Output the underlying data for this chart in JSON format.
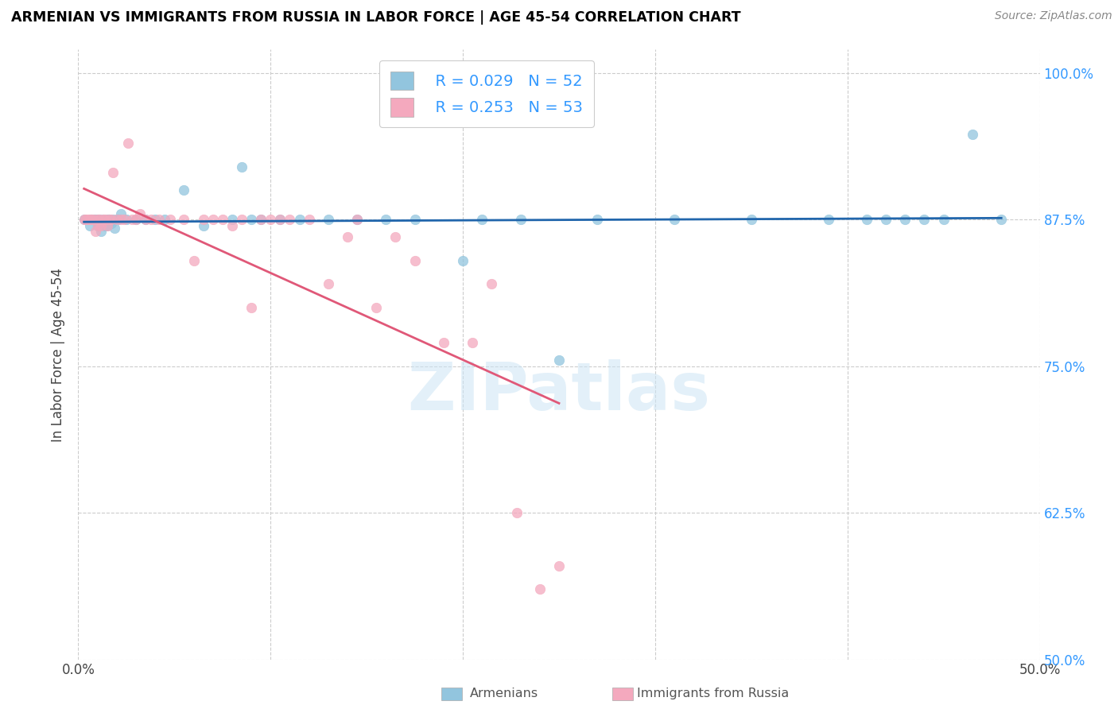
{
  "title": "ARMENIAN VS IMMIGRANTS FROM RUSSIA IN LABOR FORCE | AGE 45-54 CORRELATION CHART",
  "source": "Source: ZipAtlas.com",
  "ylabel": "In Labor Force | Age 45-54",
  "xlim": [
    0.0,
    0.5
  ],
  "ylim": [
    0.5,
    1.02
  ],
  "xtick_pos": [
    0.0,
    0.1,
    0.2,
    0.3,
    0.4,
    0.5
  ],
  "xtick_labels": [
    "0.0%",
    "",
    "",
    "",
    "",
    "50.0%"
  ],
  "yticks": [
    0.5,
    0.625,
    0.75,
    0.875,
    1.0
  ],
  "ytick_labels": [
    "50.0%",
    "62.5%",
    "75.0%",
    "87.5%",
    "100.0%"
  ],
  "blue_color": "#92c5de",
  "pink_color": "#f4a9be",
  "trend_blue": "#2166ac",
  "trend_pink": "#e05878",
  "watermark": "ZIPatlas",
  "legend_R_blue": "R = 0.029",
  "legend_N_blue": "N = 52",
  "legend_R_pink": "R = 0.253",
  "legend_N_pink": "N = 53",
  "legend_label_blue": "Armenians",
  "legend_label_pink": "Immigrants from Russia",
  "blue_x": [
    0.003,
    0.006,
    0.007,
    0.008,
    0.009,
    0.01,
    0.01,
    0.011,
    0.012,
    0.013,
    0.014,
    0.015,
    0.015,
    0.016,
    0.017,
    0.018,
    0.019,
    0.02,
    0.021,
    0.022,
    0.025,
    0.03,
    0.035,
    0.04,
    0.045,
    0.055,
    0.065,
    0.08,
    0.085,
    0.09,
    0.095,
    0.105,
    0.115,
    0.13,
    0.145,
    0.16,
    0.175,
    0.2,
    0.21,
    0.23,
    0.25,
    0.27,
    0.31,
    0.35,
    0.39,
    0.41,
    0.42,
    0.43,
    0.44,
    0.45,
    0.465,
    0.48
  ],
  "blue_y": [
    0.875,
    0.87,
    0.875,
    0.875,
    0.875,
    0.875,
    0.87,
    0.875,
    0.865,
    0.875,
    0.87,
    0.875,
    0.87,
    0.875,
    0.872,
    0.875,
    0.868,
    0.875,
    0.875,
    0.88,
    0.875,
    0.875,
    0.875,
    0.875,
    0.875,
    0.9,
    0.87,
    0.875,
    0.92,
    0.875,
    0.875,
    0.875,
    0.875,
    0.875,
    0.875,
    0.875,
    0.875,
    0.84,
    0.875,
    0.875,
    0.755,
    0.875,
    0.875,
    0.875,
    0.875,
    0.875,
    0.875,
    0.875,
    0.875,
    0.875,
    0.948,
    0.875
  ],
  "pink_x": [
    0.003,
    0.004,
    0.005,
    0.006,
    0.007,
    0.008,
    0.009,
    0.01,
    0.01,
    0.011,
    0.012,
    0.013,
    0.014,
    0.015,
    0.016,
    0.017,
    0.018,
    0.02,
    0.022,
    0.024,
    0.026,
    0.028,
    0.03,
    0.032,
    0.035,
    0.038,
    0.042,
    0.048,
    0.055,
    0.06,
    0.065,
    0.07,
    0.075,
    0.08,
    0.085,
    0.09,
    0.095,
    0.1,
    0.105,
    0.11,
    0.12,
    0.13,
    0.14,
    0.145,
    0.155,
    0.165,
    0.175,
    0.19,
    0.205,
    0.215,
    0.228,
    0.24,
    0.25
  ],
  "pink_y": [
    0.875,
    0.875,
    0.875,
    0.875,
    0.875,
    0.875,
    0.865,
    0.875,
    0.87,
    0.875,
    0.87,
    0.875,
    0.875,
    0.87,
    0.875,
    0.875,
    0.915,
    0.875,
    0.875,
    0.875,
    0.94,
    0.875,
    0.875,
    0.88,
    0.875,
    0.875,
    0.875,
    0.875,
    0.875,
    0.84,
    0.875,
    0.875,
    0.875,
    0.87,
    0.875,
    0.8,
    0.875,
    0.875,
    0.875,
    0.875,
    0.875,
    0.82,
    0.86,
    0.875,
    0.8,
    0.86,
    0.84,
    0.77,
    0.77,
    0.82,
    0.625,
    0.56,
    0.58
  ]
}
